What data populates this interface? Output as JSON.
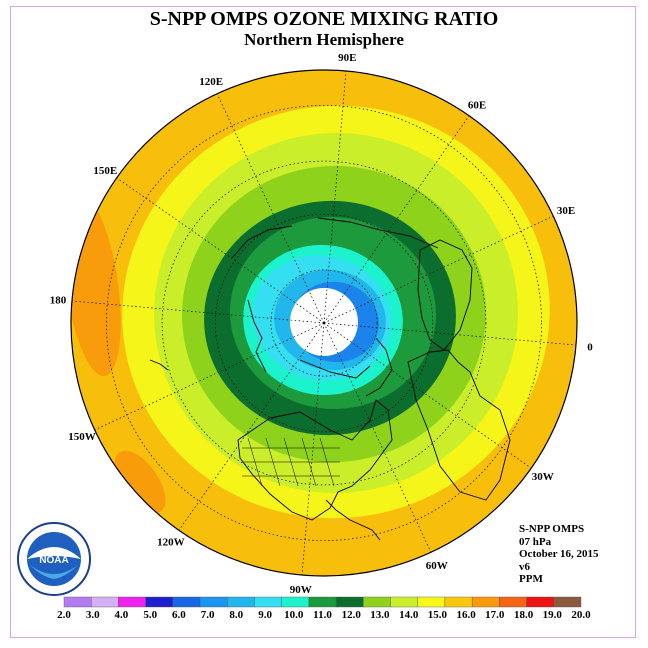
{
  "title": "S-NPP OMPS OZONE MIXING RATIO",
  "subtitle": "Northern Hemisphere",
  "longitude_labels": [
    {
      "text": "90E",
      "deg": 90
    },
    {
      "text": "60E",
      "deg": 60
    },
    {
      "text": "30E",
      "deg": 30
    },
    {
      "text": "0",
      "deg": 0
    },
    {
      "text": "30W",
      "deg": -30
    },
    {
      "text": "60W",
      "deg": -60
    },
    {
      "text": "90W",
      "deg": -90
    },
    {
      "text": "120W",
      "deg": -120
    },
    {
      "text": "150W",
      "deg": -150
    },
    {
      "text": "180",
      "deg": 180
    },
    {
      "text": "150E",
      "deg": 150
    },
    {
      "text": "120E",
      "deg": 120
    }
  ],
  "info": {
    "instrument": "S-NPP OMPS",
    "level": "07 hPa",
    "date": "October 16, 2015",
    "version": "v6",
    "units": "PPM"
  },
  "logo": {
    "text": "NOAA",
    "name": "noaa-logo"
  },
  "colorbar": {
    "labels": [
      "2.0",
      "3.0",
      "4.0",
      "5.0",
      "6.0",
      "7.0",
      "8.0",
      "9.0",
      "10.0",
      "11.0",
      "12.0",
      "13.0",
      "14.0",
      "15.0",
      "16.0",
      "17.0",
      "18.0",
      "19.0",
      "20.0"
    ],
    "colors": [
      "#b27cf0",
      "#d6b0f5",
      "#ee22ee",
      "#1f1fcf",
      "#1666e6",
      "#1a95f0",
      "#21b6ec",
      "#33dff0",
      "#1cf3cc",
      "#1a9a3a",
      "#0b6e2f",
      "#8ed21c",
      "#cbee2a",
      "#f7f719",
      "#f9c80e",
      "#f89a0c",
      "#f46412",
      "#ee1111",
      "#8b5a3c"
    ]
  },
  "map_colors": {
    "ocean": "#f8be0c",
    "outer_band": "#f9c90f",
    "dark_orange": "#f89c0c",
    "yellow": "#f6f51a",
    "lightgreen": "#cbee2a",
    "green": "#8ed21c",
    "medgreen": "#1c9a3c",
    "darkgreen": "#0b6e2f",
    "teal": "#1cf3cc",
    "cyan": "#33dff0",
    "skyblue": "#21b6ec",
    "blue": "#1a84ea",
    "pole": "#ffffff"
  }
}
